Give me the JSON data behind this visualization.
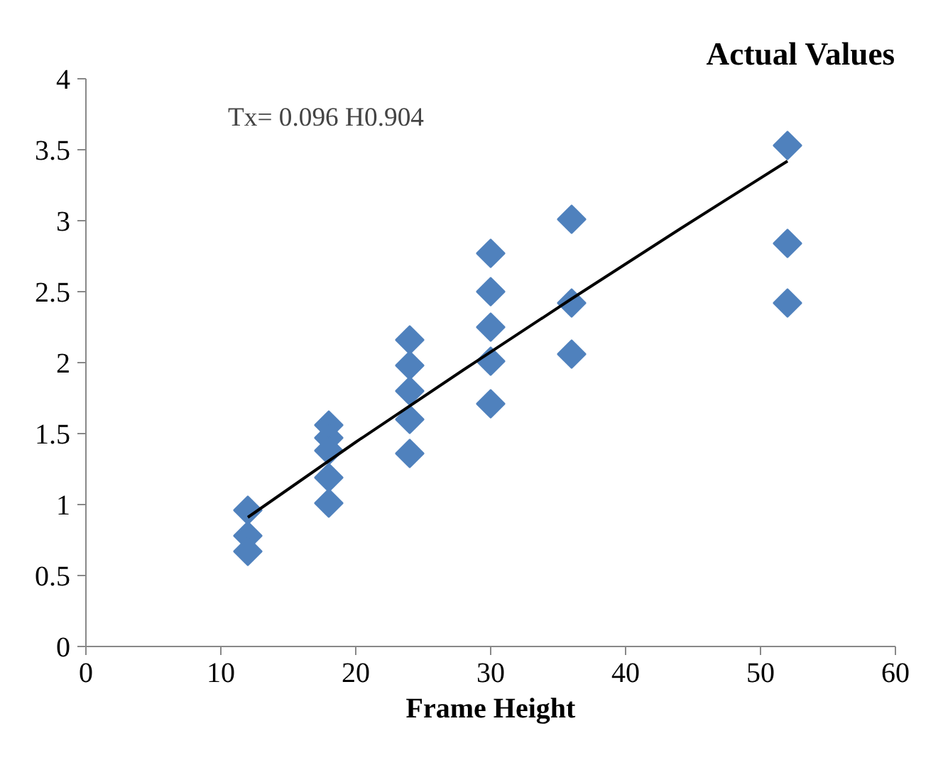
{
  "chart_data": {
    "type": "scatter",
    "title": "Actual Values",
    "xlabel": "Frame Height",
    "annotations": [
      "Tx= 0.096 H0.904"
    ],
    "series": [
      {
        "color": "#4f81bd",
        "marker": "diamond",
        "x": [
          12,
          12,
          12,
          18,
          18,
          18,
          18,
          18,
          24,
          24,
          24,
          24,
          24,
          30,
          30,
          30,
          30,
          30,
          36,
          36,
          36,
          52,
          52,
          52
        ],
        "values": [
          0.96,
          0.78,
          0.67,
          1.56,
          1.47,
          1.38,
          1.19,
          1.01,
          2.16,
          1.98,
          1.8,
          1.6,
          1.36,
          2.77,
          2.5,
          2.25,
          2.01,
          1.71,
          3.01,
          2.42,
          2.06,
          3.53,
          2.84,
          2.42
        ]
      },
      {
        "type": "line",
        "color": "#000000",
        "marker": "none",
        "x": [
          12,
          20,
          28,
          36,
          44,
          52
        ],
        "values": [
          0.91,
          1.44,
          1.95,
          2.45,
          2.94,
          3.42
        ]
      }
    ],
    "xlim": [
      0,
      60
    ],
    "xticks": [
      0,
      10,
      20,
      30,
      40,
      50,
      60
    ],
    "ylim": [
      0,
      4
    ],
    "yticks": [
      0,
      0.5,
      1,
      1.5,
      2,
      2.5,
      3,
      3.5,
      4
    ],
    "grid": false
  }
}
